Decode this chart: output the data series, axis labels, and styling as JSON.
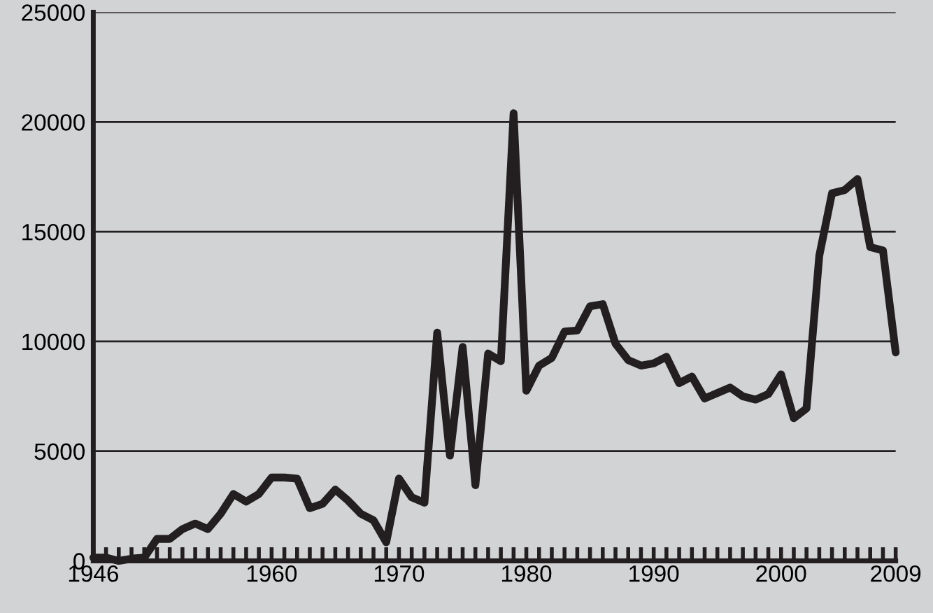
{
  "chart_data": {
    "type": "line",
    "x": [
      1946,
      1947,
      1948,
      1949,
      1950,
      1951,
      1952,
      1953,
      1954,
      1955,
      1956,
      1957,
      1958,
      1959,
      1960,
      1961,
      1962,
      1963,
      1964,
      1965,
      1966,
      1967,
      1968,
      1969,
      1970,
      1971,
      1972,
      1973,
      1974,
      1975,
      1976,
      1977,
      1978,
      1979,
      1980,
      1981,
      1982,
      1983,
      1984,
      1985,
      1986,
      1987,
      1988,
      1989,
      1990,
      1991,
      1992,
      1993,
      1994,
      1995,
      1996,
      1997,
      1998,
      1999,
      2000,
      2001,
      2002,
      2003,
      2004,
      2005,
      2006,
      2007,
      2008,
      2009
    ],
    "series": [
      {
        "color": "#231f20",
        "values": [
          150,
          150,
          0,
          100,
          150,
          1000,
          1000,
          1450,
          1700,
          1450,
          2150,
          3050,
          2700,
          3050,
          3800,
          3800,
          3750,
          2400,
          2600,
          3250,
          2750,
          2150,
          1850,
          850,
          3750,
          2900,
          2650,
          10400,
          4800,
          9750,
          3450,
          9450,
          9100,
          20400,
          7750,
          8900,
          9250,
          10450,
          10500,
          11600,
          11700,
          9900,
          9150,
          8900,
          9000,
          9300,
          8100,
          8400,
          7400,
          7650,
          7900,
          7500,
          7350,
          7600,
          8500,
          6500,
          6950,
          13900,
          16750,
          16900,
          17400,
          14300,
          14150,
          9500
        ]
      }
    ],
    "xlim": [
      1946,
      2009
    ],
    "ylim": [
      0,
      25000
    ],
    "xticks": [
      1946,
      {
        "value": 1947,
        "label": null
      },
      {
        "value": 1948,
        "label": null
      },
      {
        "value": 1949,
        "label": null
      },
      {
        "value": 1950,
        "label": null
      },
      {
        "value": 1951,
        "label": null
      },
      {
        "value": 1952,
        "label": null
      },
      {
        "value": 1953,
        "label": null
      },
      {
        "value": 1954,
        "label": null
      },
      {
        "value": 1955,
        "label": null
      },
      {
        "value": 1956,
        "label": null
      },
      {
        "value": 1957,
        "label": null
      },
      {
        "value": 1958,
        "label": null
      },
      {
        "value": 1959,
        "label": null
      },
      1960,
      {
        "value": 1961,
        "label": null
      },
      {
        "value": 1962,
        "label": null
      },
      {
        "value": 1963,
        "label": null
      },
      {
        "value": 1964,
        "label": null
      },
      {
        "value": 1965,
        "label": null
      },
      {
        "value": 1966,
        "label": null
      },
      {
        "value": 1967,
        "label": null
      },
      {
        "value": 1968,
        "label": null
      },
      {
        "value": 1969,
        "label": null
      },
      1970,
      {
        "value": 1971,
        "label": null
      },
      {
        "value": 1972,
        "label": null
      },
      {
        "value": 1973,
        "label": null
      },
      {
        "value": 1974,
        "label": null
      },
      {
        "value": 1975,
        "label": null
      },
      {
        "value": 1976,
        "label": null
      },
      {
        "value": 1977,
        "label": null
      },
      {
        "value": 1978,
        "label": null
      },
      {
        "value": 1979,
        "label": null
      },
      1980,
      {
        "value": 1981,
        "label": null
      },
      {
        "value": 1982,
        "label": null
      },
      {
        "value": 1983,
        "label": null
      },
      {
        "value": 1984,
        "label": null
      },
      {
        "value": 1985,
        "label": null
      },
      {
        "value": 1986,
        "label": null
      },
      {
        "value": 1987,
        "label": null
      },
      {
        "value": 1988,
        "label": null
      },
      {
        "value": 1989,
        "label": null
      },
      1990,
      {
        "value": 1991,
        "label": null
      },
      {
        "value": 1992,
        "label": null
      },
      {
        "value": 1993,
        "label": null
      },
      {
        "value": 1994,
        "label": null
      },
      {
        "value": 1995,
        "label": null
      },
      {
        "value": 1996,
        "label": null
      },
      {
        "value": 1997,
        "label": null
      },
      {
        "value": 1998,
        "label": null
      },
      {
        "value": 1999,
        "label": null
      },
      2000,
      {
        "value": 2001,
        "label": null
      },
      {
        "value": 2002,
        "label": null
      },
      {
        "value": 2003,
        "label": null
      },
      {
        "value": 2004,
        "label": null
      },
      {
        "value": 2005,
        "label": null
      },
      {
        "value": 2006,
        "label": null
      },
      {
        "value": 2007,
        "label": null
      },
      {
        "value": 2008,
        "label": null
      },
      2009
    ],
    "yticks": [
      0,
      5000,
      10000,
      15000,
      20000,
      25000
    ],
    "grid": "y",
    "line_style": "solid"
  }
}
